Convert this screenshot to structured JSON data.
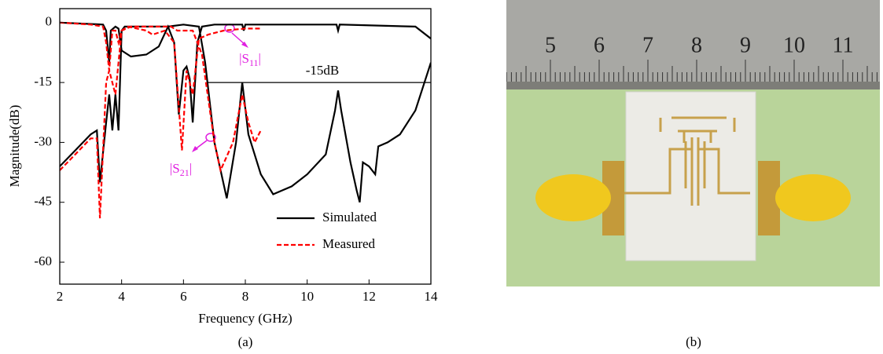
{
  "chart_data": {
    "type": "line",
    "xlabel": "Frequency (GHz)",
    "ylabel": "Magnitude(dB)",
    "xlim": [
      2,
      14
    ],
    "xticks": [
      2,
      4,
      6,
      8,
      10,
      12,
      14
    ],
    "ylim": [
      -65.5,
      3.5
    ],
    "yticks": [
      0,
      -15,
      -30,
      -45,
      -60
    ],
    "legend": "lower right",
    "series": [
      {
        "name": "Simulated",
        "color": "#000000",
        "dash": false,
        "x": [
          2,
          3.4,
          3.5,
          3.6,
          3.65,
          3.8,
          3.9,
          4.0,
          4.3,
          4.8,
          5.2,
          5.5,
          5.7,
          5.85,
          6.0,
          6.1,
          6.2,
          6.3,
          6.45,
          6.6,
          7,
          7.9,
          7.95,
          8.0,
          10.95,
          11,
          11.05,
          13.5,
          14,
          null,
          2,
          2.5,
          3,
          3.2,
          3.3,
          3.5,
          3.6,
          3.7,
          3.8,
          3.9,
          4.0,
          4.1,
          5.5,
          6.0,
          6.5,
          6.7,
          7.0,
          7.4,
          7.7,
          7.9,
          8.1,
          8.5,
          8.9,
          9.5,
          10,
          10.6,
          10.9,
          11,
          11.1,
          11.4,
          11.6,
          11.7,
          11.8,
          12,
          12.2,
          12.3,
          12.6,
          13,
          13.5,
          14
        ],
        "values": [
          0,
          -0.5,
          -2,
          -10,
          -2,
          -1,
          -1.5,
          -7,
          -8.5,
          -8,
          -6,
          -1,
          -5,
          -23,
          -12,
          -11,
          -14,
          -25,
          -5,
          -1,
          -0.5,
          -0.5,
          -2,
          -0.5,
          -0.5,
          -2,
          -0.5,
          -1,
          -4,
          null,
          -36,
          -32,
          -28,
          -27,
          -40,
          -25,
          -18,
          -27,
          -18,
          -27,
          -2,
          -1,
          -1,
          -0.5,
          -1,
          -10,
          -30,
          -44,
          -30,
          -15,
          -28,
          -38,
          -43,
          -41,
          -38,
          -33,
          -22,
          -17,
          -22,
          -35,
          -42,
          -45,
          -35,
          -36,
          -38,
          -31,
          -30,
          -28,
          -22,
          -10
        ]
      },
      {
        "name": "Measured",
        "color": "#ff0000",
        "dash": true,
        "x": [
          2,
          3,
          3.4,
          3.5,
          3.6,
          3.7,
          3.8,
          3.9,
          4.0,
          4.2,
          4.8,
          5,
          5.4,
          5.7,
          5.95,
          6.1,
          6.3,
          6.5,
          6.8,
          7.3,
          8,
          8.5,
          null,
          2,
          2.5,
          3,
          3.2,
          3.3,
          3.5,
          3.6,
          3.8,
          3.9,
          4.0,
          4.3,
          5.6,
          5.8,
          6.3,
          6.6,
          7,
          7.2,
          7.6,
          7.9,
          8.1,
          8.3,
          8.5
        ],
        "values": [
          0,
          -0.5,
          -1,
          -5,
          -12,
          -2,
          -2,
          -5,
          -2,
          -1,
          -2,
          -3,
          -2,
          -5,
          -32,
          -12,
          -18,
          -4,
          -3,
          -2,
          -1.5,
          -1.5,
          null,
          -37,
          -33,
          -29,
          -29,
          -49,
          -15,
          -12,
          -18,
          -10,
          -2,
          -1,
          -1,
          -2,
          -2,
          -8,
          -30,
          -37,
          -30,
          -18,
          -25,
          -30,
          -27
        ]
      }
    ],
    "reference_line": {
      "y": -15,
      "label": "-15dB"
    },
    "annotations": [
      {
        "text": "|S",
        "sub": "11",
        "end": "|"
      },
      {
        "text": "|S",
        "sub": "21",
        "end": "|"
      }
    ]
  },
  "figure": {
    "captions": [
      "(a)",
      "(b)"
    ],
    "ruler_labels": [
      "5",
      "6",
      "7",
      "8",
      "9",
      "10",
      "11"
    ]
  }
}
